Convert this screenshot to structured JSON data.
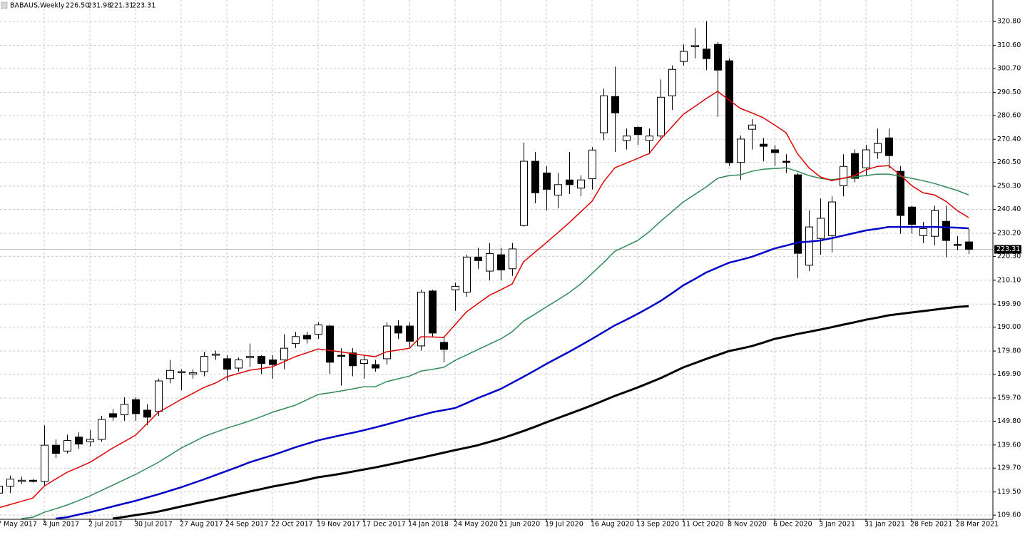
{
  "chart_data": {
    "type": "candlestick",
    "title": "BABAUS,Weekly",
    "quote": [
      "226.50",
      "231.98",
      "221.31",
      "223.31"
    ],
    "categories": [
      "7 May 2017",
      null,
      null,
      null,
      "4 Jun 2017",
      null,
      null,
      null,
      "2 Jul 2017",
      null,
      null,
      null,
      "30 Jul 2017",
      null,
      null,
      null,
      "27 Aug 2017",
      null,
      null,
      null,
      "24 Sep 2017",
      null,
      null,
      null,
      "22 Oct 2017",
      null,
      null,
      null,
      "19 Nov 2017",
      null,
      null,
      null,
      "17 Dec 2017",
      null,
      null,
      null,
      "14 Jan 2018",
      null,
      null,
      null,
      "24 May 2020",
      null,
      null,
      null,
      "21 Jun 2020",
      null,
      null,
      null,
      "19 Jul 2020",
      null,
      null,
      null,
      "16 Aug 2020",
      null,
      null,
      null,
      "13 Sep 2020",
      null,
      null,
      null,
      "11 Oct 2020",
      null,
      null,
      null,
      "8 Nov 2020",
      null,
      null,
      null,
      "6 Dec 2020",
      null,
      null,
      null,
      "3 Jan 2021",
      null,
      null,
      null,
      "31 Jan 2021",
      null,
      null,
      null,
      "28 Feb 2021",
      null,
      null,
      null,
      "28 Mar 2021",
      null
    ],
    "open": [
      119,
      122,
      124,
      124.5,
      124,
      139.5,
      137,
      143,
      141,
      142,
      153,
      152.5,
      159,
      154.5,
      154,
      168,
      170.5,
      170,
      171,
      178,
      176.5,
      172.5,
      177,
      177.5,
      176,
      176,
      183,
      186.5,
      187,
      190.5,
      178,
      179,
      174.5,
      174,
      176.5,
      190.5,
      190.5,
      182,
      205.5,
      183.5,
      206,
      205,
      220,
      214,
      221,
      215,
      233.5,
      261,
      256,
      246.5,
      253,
      249.5,
      253.5,
      273.2,
      288.7,
      269.9,
      275.5,
      269.9,
      271.8,
      289,
      303.7,
      310,
      309,
      311,
      304,
      260.5,
      274.7,
      268.3,
      265.9,
      261,
      255.2,
      216.5,
      228,
      229.2,
      250.5,
      264.3,
      258.2,
      264.7,
      271,
      256.7,
      241.4,
      229.2,
      228.9,
      235.3,
      225.4,
      226.5
    ],
    "high": [
      124,
      126.5,
      126,
      125,
      148,
      142,
      144,
      145,
      146,
      152,
      155,
      160,
      160,
      157,
      168,
      176,
      172,
      172,
      179.5,
      180,
      178,
      177,
      183,
      178,
      178,
      187,
      188,
      188,
      192,
      191,
      181,
      181,
      178,
      176,
      192,
      193,
      192,
      206,
      206,
      186,
      209,
      221,
      224,
      226,
      224,
      226,
      269,
      265,
      259,
      256,
      265,
      255,
      267,
      292,
      301.5,
      275,
      276,
      275,
      296,
      302,
      311,
      318,
      321,
      312,
      305,
      272,
      279,
      271,
      268,
      264,
      256,
      240,
      245,
      246,
      264,
      266,
      268,
      275,
      275,
      259,
      242,
      235,
      242,
      242,
      229,
      231.98
    ],
    "low": [
      117,
      119,
      123,
      123.5,
      122,
      134,
      136,
      138,
      139,
      141,
      150,
      150,
      150,
      148,
      152,
      166,
      163,
      168,
      169,
      176,
      167,
      171,
      173,
      170,
      168,
      172,
      181,
      183,
      185,
      170,
      165,
      169,
      168,
      171,
      174,
      185,
      181,
      180,
      186,
      175,
      197,
      203,
      215,
      210,
      210,
      212,
      233,
      243,
      240,
      241,
      247,
      246,
      249,
      270,
      265,
      266,
      268,
      264,
      270,
      283,
      302,
      305,
      300,
      280,
      259,
      253,
      266,
      261,
      259,
      256,
      211,
      214,
      221,
      222,
      246,
      252,
      255,
      262,
      258,
      230,
      230,
      226,
      225,
      220,
      223,
      221.31
    ],
    "close": [
      122,
      125,
      124.5,
      124,
      139.5,
      136,
      141.5,
      140,
      142,
      150.5,
      151.5,
      157,
      153,
      151.5,
      167,
      171.5,
      171,
      170.5,
      177.5,
      178.5,
      172,
      176,
      177.5,
      174.5,
      174,
      181,
      186,
      185,
      191,
      175,
      177.5,
      173.5,
      176,
      172.5,
      190.5,
      187.5,
      184,
      205,
      187.5,
      180.5,
      207.5,
      220,
      218.5,
      221.5,
      214.5,
      223.5,
      261,
      247.5,
      249,
      251,
      251,
      253,
      265.8,
      289,
      281.7,
      271.8,
      272.4,
      271.8,
      288.4,
      300.3,
      308,
      310.5,
      304.9,
      300,
      260.4,
      270.5,
      276.5,
      267.4,
      264.7,
      260.5,
      221.6,
      232.9,
      236.6,
      243.6,
      258.8,
      253.7,
      265.9,
      268.6,
      263.4,
      237.8,
      234,
      232.2,
      239.9,
      227.1,
      225,
      223.31
    ],
    "up_color": "#ffffff",
    "down_color": "#000000",
    "series": [
      {
        "color": "#000000",
        "values": [
          null,
          null,
          null,
          null,
          null,
          null,
          null,
          null,
          null,
          null,
          108.1,
          108.8,
          109.6,
          110.3,
          111.1,
          112.2,
          113.3,
          114.3,
          115.4,
          116.4,
          117.5,
          118.6,
          119.7,
          120.7,
          121.8,
          122.7,
          123.6,
          124.7,
          125.8,
          126.5,
          127.3,
          128.2,
          129.1,
          130,
          131,
          132,
          133.1,
          134.1,
          135.2,
          136.3,
          137.4,
          138.4,
          139.5,
          140.9,
          142.3,
          143.9,
          145.6,
          147.4,
          149.3,
          151.1,
          152.9,
          154.7,
          156.6,
          158.6,
          160.6,
          162.4,
          164.2,
          166.2,
          168.2,
          170.5,
          172.8,
          174.6,
          176.4,
          178.1,
          179.8,
          180.8,
          181.9,
          183.4,
          185,
          186,
          187.1,
          188,
          189,
          190,
          191.1,
          192.1,
          193.2,
          194.1,
          195.1,
          195.7,
          196.3,
          196.9,
          197.5,
          198.1,
          198.7,
          199
        ]
      },
      {
        "color": "#0000c8",
        "values": [
          null,
          null,
          null,
          null,
          null,
          108.1,
          108.7,
          109.8,
          110.8,
          112,
          113.3,
          114.5,
          115.7,
          117.1,
          118.5,
          120,
          121.5,
          123.2,
          124.9,
          126.7,
          128.5,
          130.3,
          132.2,
          133.7,
          135.2,
          136.9,
          138.6,
          140.1,
          141.6,
          142.7,
          143.8,
          144.8,
          145.9,
          147.1,
          148.4,
          149.7,
          151.1,
          152.3,
          153.6,
          154.5,
          155.4,
          157.5,
          159.7,
          161.6,
          163.6,
          166.2,
          168.8,
          171.5,
          174.3,
          176.9,
          179.5,
          182.2,
          185,
          187.9,
          190.8,
          193.2,
          195.7,
          198.4,
          201.2,
          204.5,
          207.9,
          210.6,
          213.4,
          215.5,
          217.6,
          218.8,
          220.1,
          221.9,
          223.7,
          224.9,
          226.2,
          226.6,
          227.1,
          228.1,
          229.2,
          230.3,
          231.4,
          232.1,
          232.9,
          232.9,
          232.9,
          232.9,
          232.9,
          232.7,
          232.6,
          232.3
        ]
      },
      {
        "color": "#2e8b57",
        "values": [
          null,
          null,
          108.1,
          108.7,
          110.8,
          112.3,
          113.9,
          115.8,
          117.8,
          120.1,
          122.4,
          124.7,
          127,
          129.6,
          132.2,
          135.2,
          138.3,
          140.7,
          143.2,
          145,
          146.8,
          148.3,
          149.9,
          151.7,
          153.6,
          155.1,
          156.6,
          158.9,
          161.2,
          161.9,
          162.7,
          163.6,
          164.5,
          164.5,
          166.7,
          167.9,
          169.1,
          171.2,
          172,
          172.8,
          175.8,
          178.1,
          180.4,
          182.7,
          185,
          188,
          192.6,
          195.6,
          198.7,
          201.7,
          204.8,
          208.5,
          213,
          217.6,
          222.5,
          224.8,
          227.1,
          230.8,
          235.3,
          239.4,
          243.6,
          246.8,
          250,
          253.7,
          254.9,
          255.2,
          256.7,
          257.6,
          257.9,
          258.2,
          256.7,
          254.9,
          253.7,
          253.1,
          253.7,
          254.3,
          254.9,
          255.5,
          255.5,
          254.6,
          253.7,
          252.7,
          251.5,
          250,
          248.5,
          246.6
        ]
      },
      {
        "color": "#e00000",
        "values": [
          112.7,
          114.1,
          115.5,
          116.9,
          122,
          125,
          127.9,
          130,
          132.2,
          135.2,
          138.3,
          141,
          143.8,
          148.7,
          153.6,
          156.3,
          159.1,
          161.6,
          164.2,
          166.1,
          168.8,
          170.2,
          171.6,
          172.3,
          173.1,
          175.2,
          177.4,
          179,
          180.7,
          180.1,
          179.4,
          178.7,
          178,
          177.4,
          179.5,
          180.2,
          181,
          185.9,
          185.8,
          185.6,
          191.1,
          196.6,
          200.1,
          203.6,
          206,
          208.5,
          218,
          222.1,
          226.2,
          230.4,
          234.7,
          239.3,
          243.9,
          252.1,
          258.2,
          260.2,
          262.2,
          264.3,
          270.4,
          275.7,
          281.1,
          284.4,
          287.8,
          290.9,
          287.2,
          283.6,
          281.7,
          279.6,
          276.5,
          273.2,
          264.3,
          258.2,
          254.3,
          252.7,
          253.7,
          254.9,
          257.3,
          258.8,
          259.1,
          255.2,
          250.6,
          247.5,
          246.6,
          243.9,
          239.9,
          236.9
        ]
      }
    ],
    "last_price": {
      "value": 223.31,
      "label": "223.31"
    },
    "ylim": [
      107.8,
      330.0
    ],
    "yticks": [
      {
        "value": 109.6,
        "label": "109.60"
      },
      {
        "value": 119.5,
        "label": "119.50"
      },
      {
        "value": 129.7,
        "label": "129.70"
      },
      {
        "value": 139.6,
        "label": "139.60"
      },
      {
        "value": 149.8,
        "label": "149.80"
      },
      {
        "value": 159.7,
        "label": "159.70"
      },
      {
        "value": 169.9,
        "label": "169.90"
      },
      {
        "value": 179.8,
        "label": "179.80"
      },
      {
        "value": 190,
        "label": "190.00"
      },
      {
        "value": 199.9,
        "label": "199.90"
      },
      {
        "value": 210.1,
        "label": "210.10"
      },
      {
        "value": 220.3,
        "label": "220.30"
      },
      {
        "value": 230.2,
        "label": "230.20"
      },
      {
        "value": 240.4,
        "label": "240.40"
      },
      {
        "value": 250.3,
        "label": "250.30"
      },
      {
        "value": 260.5,
        "label": "260.50"
      },
      {
        "value": 270.4,
        "label": "270.40"
      },
      {
        "value": 280.6,
        "label": "280.60"
      },
      {
        "value": 290.5,
        "label": "290.50"
      },
      {
        "value": 300.7,
        "label": "300.70"
      },
      {
        "value": 310.6,
        "label": "310.60"
      },
      {
        "value": 320.8,
        "label": "320.80"
      }
    ],
    "grid": true
  }
}
